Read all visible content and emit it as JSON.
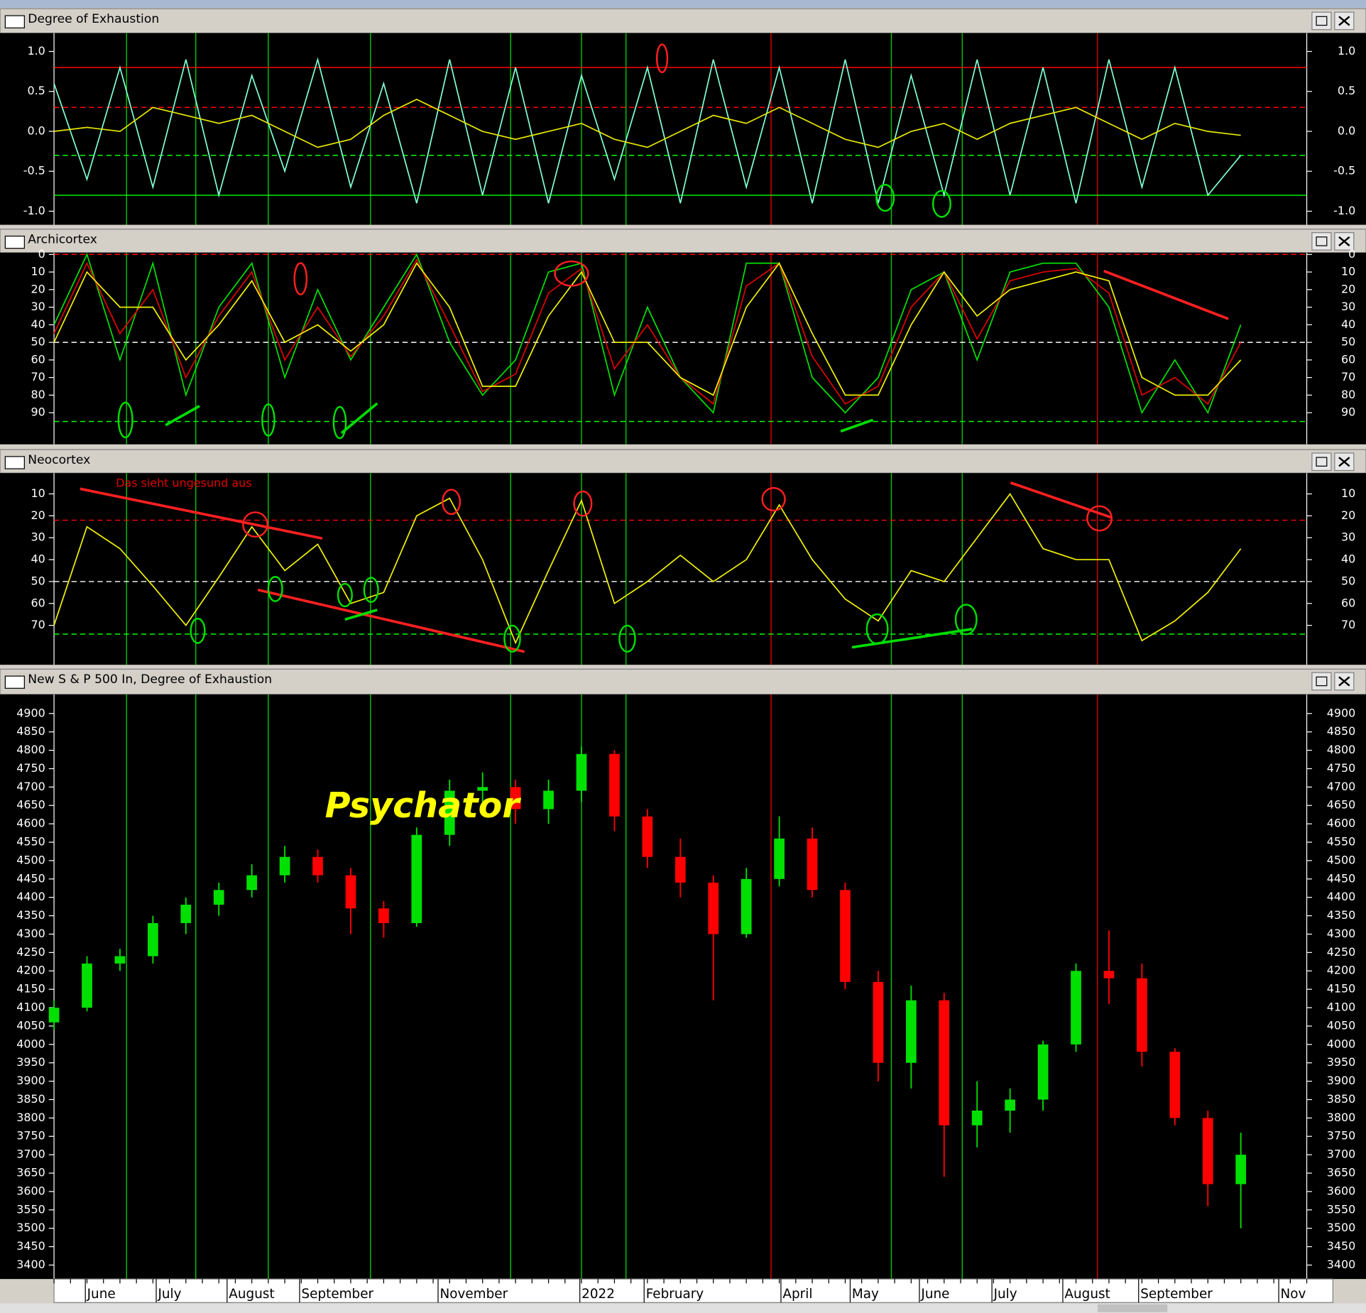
{
  "x_axis": {
    "xlim": [
      0,
      76
    ],
    "xticks": [
      {
        "value": 1.9,
        "label": "June"
      },
      {
        "value": 6.2,
        "label": "July"
      },
      {
        "value": 10.5,
        "label": "August"
      },
      {
        "value": 14.9,
        "label": "September"
      },
      {
        "value": 23.3,
        "label": "November"
      },
      {
        "value": 31.9,
        "label": "2022"
      },
      {
        "value": 35.8,
        "label": "February"
      },
      {
        "value": 44.1,
        "label": "April"
      },
      {
        "value": 48.3,
        "label": "May"
      },
      {
        "value": 52.5,
        "label": "June"
      },
      {
        "value": 56.9,
        "label": "July"
      },
      {
        "value": 61.2,
        "label": "August"
      },
      {
        "value": 65.8,
        "label": "September"
      },
      {
        "value": 74.3,
        "label": "Nov"
      }
    ],
    "vlines": [
      {
        "value": 4.4,
        "color": "#00c000"
      },
      {
        "value": 8.6,
        "color": "#00c000"
      },
      {
        "value": 13.0,
        "color": "#00c000"
      },
      {
        "value": 19.2,
        "color": "#00c000"
      },
      {
        "value": 27.7,
        "color": "#00c000"
      },
      {
        "value": 32.0,
        "color": "#00c000"
      },
      {
        "value": 34.7,
        "color": "#00c000"
      },
      {
        "value": 43.5,
        "color": "#d00000"
      },
      {
        "value": 50.8,
        "color": "#00c000"
      },
      {
        "value": 55.1,
        "color": "#00c000"
      },
      {
        "value": 63.3,
        "color": "#d00000"
      }
    ]
  },
  "chart_data": [
    {
      "type": "line",
      "title": "Degree of Exhaustion",
      "ylim": [
        -1.17,
        1.23
      ],
      "yticks": [
        {
          "value": 1,
          "label": "1.0"
        },
        0.5,
        {
          "value": 0,
          "label": "0.0"
        },
        -0.5,
        {
          "value": -1,
          "label": "-1.0"
        }
      ],
      "hlines": [
        {
          "value": 0.8,
          "color": "#ff0000",
          "dash": false
        },
        {
          "value": 0.3,
          "color": "#ff0000",
          "dash": true
        },
        {
          "value": -0.3,
          "color": "#00ff00",
          "dash": true
        },
        {
          "value": -0.8,
          "color": "#00ff00",
          "dash": false
        }
      ],
      "x": [
        0,
        2,
        4,
        6,
        8,
        10,
        12,
        14,
        16,
        18,
        20,
        22,
        24,
        26,
        28,
        30,
        32,
        34,
        36,
        38,
        40,
        42,
        44,
        46,
        48,
        50,
        52,
        54,
        56,
        58,
        60,
        62,
        64,
        66,
        68,
        70,
        72
      ],
      "series": [
        {
          "color": "#7fffd4",
          "values": [
            0.6,
            -0.6,
            0.8,
            -0.7,
            0.9,
            -0.8,
            0.7,
            -0.5,
            0.9,
            -0.7,
            0.6,
            -0.9,
            0.9,
            -0.8,
            0.8,
            -0.9,
            0.7,
            -0.6,
            0.8,
            -0.9,
            0.9,
            -0.7,
            0.8,
            -0.9,
            0.9,
            -0.9,
            0.7,
            -0.8,
            0.9,
            -0.8,
            0.8,
            -0.9,
            0.9,
            -0.7,
            0.8,
            -0.8,
            -0.3
          ]
        },
        {
          "color": "#e6e600",
          "values": [
            0.0,
            0.05,
            0.0,
            0.3,
            0.2,
            0.1,
            0.2,
            0.0,
            -0.2,
            -0.1,
            0.2,
            0.4,
            0.2,
            0.0,
            -0.1,
            0.0,
            0.1,
            -0.1,
            -0.2,
            0.0,
            0.2,
            0.1,
            0.3,
            0.1,
            -0.1,
            -0.2,
            0.0,
            0.1,
            -0.1,
            0.1,
            0.2,
            0.3,
            0.1,
            -0.1,
            0.1,
            0.0,
            -0.05
          ]
        }
      ]
    },
    {
      "type": "line",
      "title": "Archicortex",
      "ylim": [
        108,
        -1
      ],
      "yticks": [
        0,
        10,
        20,
        30,
        40,
        50,
        60,
        70,
        80,
        90
      ],
      "hlines": [
        {
          "value": 0,
          "color": "#ff0000",
          "dash": true
        },
        {
          "value": 50,
          "color": "#ffffff",
          "dash": true
        },
        {
          "value": 95,
          "color": "#00ff00",
          "dash": true
        }
      ],
      "x": [
        0,
        2,
        4,
        6,
        8,
        10,
        12,
        14,
        16,
        18,
        20,
        22,
        24,
        26,
        28,
        30,
        32,
        34,
        36,
        38,
        40,
        42,
        44,
        46,
        48,
        50,
        52,
        54,
        56,
        58,
        60,
        62,
        64,
        66,
        68,
        70,
        72
      ],
      "series": [
        {
          "color": "#00e000",
          "values": [
            40,
            0,
            60,
            5,
            80,
            30,
            5,
            70,
            20,
            60,
            30,
            0,
            50,
            80,
            60,
            10,
            5,
            80,
            30,
            70,
            90,
            5,
            5,
            70,
            90,
            70,
            20,
            10,
            60,
            10,
            5,
            5,
            30,
            90,
            60,
            90,
            40
          ]
        },
        {
          "color": "#e00000",
          "values": [
            45,
            5,
            45,
            20,
            70,
            35,
            10,
            60,
            30,
            58,
            35,
            3,
            40,
            78,
            68,
            22,
            8,
            65,
            40,
            70,
            85,
            18,
            5,
            58,
            85,
            75,
            30,
            10,
            48,
            15,
            10,
            8,
            22,
            80,
            70,
            85,
            50
          ]
        },
        {
          "color": "#f0f000",
          "values": [
            50,
            10,
            30,
            30,
            60,
            40,
            15,
            50,
            40,
            55,
            40,
            5,
            30,
            75,
            75,
            35,
            10,
            50,
            50,
            70,
            80,
            30,
            5,
            45,
            80,
            80,
            40,
            10,
            35,
            20,
            15,
            10,
            15,
            70,
            80,
            80,
            60
          ]
        }
      ]
    },
    {
      "type": "line",
      "title": "Neocortex",
      "annotation": "Das sieht ungesund aus",
      "ylim": [
        88,
        0.5
      ],
      "yticks": [
        10,
        20,
        30,
        40,
        50,
        60,
        70
      ],
      "hlines": [
        {
          "value": 22,
          "color": "#ff0000",
          "dash": true
        },
        {
          "value": 50,
          "color": "#ffffff",
          "dash": true
        },
        {
          "value": 74,
          "color": "#00ff00",
          "dash": true
        }
      ],
      "x": [
        0,
        2,
        4,
        6,
        8,
        10,
        12,
        14,
        16,
        18,
        20,
        22,
        24,
        26,
        28,
        30,
        32,
        34,
        36,
        38,
        40,
        42,
        44,
        46,
        48,
        50,
        52,
        54,
        56,
        58,
        60,
        62,
        64,
        66,
        68,
        70,
        72
      ],
      "series": [
        {
          "color": "#f0f000",
          "values": [
            70,
            25,
            35,
            52,
            70,
            48,
            25,
            45,
            33,
            60,
            55,
            20,
            12,
            40,
            78,
            45,
            13,
            60,
            50,
            38,
            50,
            40,
            15,
            40,
            58,
            68,
            45,
            50,
            30,
            10,
            35,
            40,
            40,
            77,
            68,
            55,
            35
          ]
        }
      ]
    },
    {
      "type": "candlestick",
      "title": "New S & P 500 In, Degree of Exhaustion",
      "annotation": "Psychator",
      "ylim": [
        3362,
        4952
      ],
      "yticks": [
        3400,
        3450,
        3500,
        3550,
        3600,
        3650,
        3700,
        3750,
        3800,
        3850,
        3900,
        3950,
        4000,
        4050,
        4100,
        4150,
        4200,
        4250,
        4300,
        4350,
        4400,
        4450,
        4500,
        4550,
        4600,
        4650,
        4700,
        4750,
        4800,
        4850,
        4900
      ],
      "up_color": "#00e000",
      "down_color": "#ff0000",
      "x": [
        0,
        2,
        4,
        6,
        8,
        10,
        12,
        14,
        16,
        18,
        20,
        22,
        24,
        26,
        28,
        30,
        32,
        34,
        36,
        38,
        40,
        42,
        44,
        46,
        48,
        50,
        52,
        54,
        56,
        58,
        60,
        62,
        64,
        66,
        68,
        70,
        72
      ],
      "open": [
        4060,
        4100,
        4220,
        4240,
        4330,
        4380,
        4420,
        4460,
        4510,
        4460,
        4370,
        4330,
        4570,
        4690,
        4700,
        4640,
        4690,
        4790,
        4620,
        4510,
        4440,
        4300,
        4450,
        4560,
        4420,
        4170,
        3950,
        4120,
        3780,
        3820,
        3850,
        4000,
        4200,
        4180,
        3980,
        3800,
        3620
      ],
      "high": [
        4120,
        4240,
        4260,
        4350,
        4400,
        4440,
        4490,
        4540,
        4530,
        4480,
        4390,
        4590,
        4720,
        4740,
        4720,
        4720,
        4810,
        4800,
        4640,
        4560,
        4460,
        4480,
        4620,
        4590,
        4440,
        4200,
        4160,
        4140,
        3900,
        3880,
        4010,
        4220,
        4310,
        4220,
        3990,
        3820,
        3760
      ],
      "low": [
        4040,
        4090,
        4200,
        4220,
        4300,
        4350,
        4400,
        4440,
        4440,
        4300,
        4290,
        4320,
        4540,
        4660,
        4600,
        4600,
        4660,
        4580,
        4480,
        4400,
        4120,
        4290,
        4430,
        4400,
        4150,
        3900,
        3880,
        3640,
        3720,
        3760,
        3820,
        3980,
        4110,
        3940,
        3780,
        3560,
        3500
      ],
      "close": [
        4100,
        4220,
        4240,
        4330,
        4380,
        4420,
        4460,
        4510,
        4460,
        4370,
        4330,
        4570,
        4690,
        4700,
        4640,
        4690,
        4790,
        4620,
        4510,
        4440,
        4300,
        4450,
        4560,
        4420,
        4170,
        3950,
        4120,
        3780,
        3820,
        3850,
        4000,
        4200,
        4180,
        3980,
        3800,
        3620,
        3700
      ]
    }
  ]
}
